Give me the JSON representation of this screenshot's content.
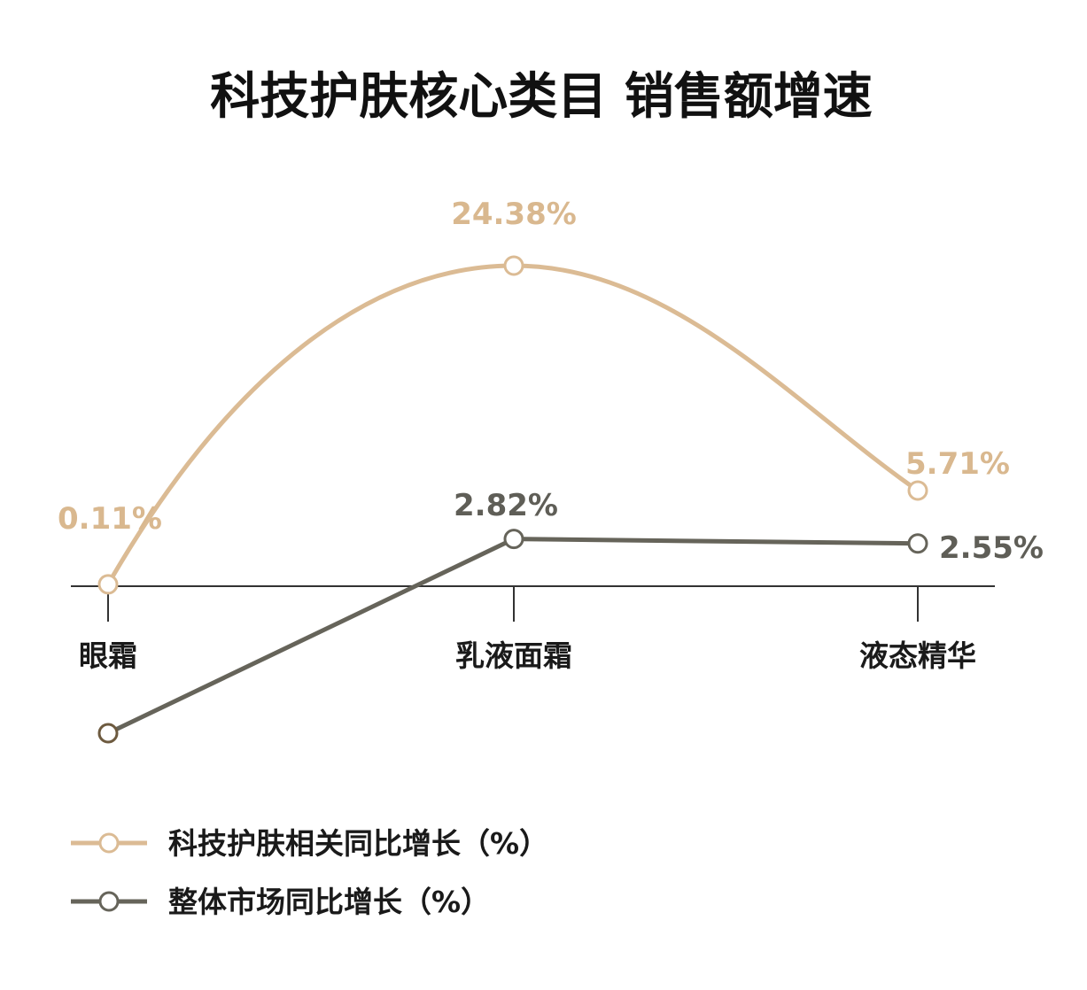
{
  "chart_data": {
    "type": "line",
    "title": "科技护肤核心类目 销售额增速",
    "categories": [
      "眼霜",
      "乳液面霜",
      "液态精华"
    ],
    "series": [
      {
        "name": "科技护肤相关同比增长（%）",
        "values": [
          0.11,
          24.38,
          5.71
        ],
        "labels": [
          "0.11%",
          "24.38%",
          "5.71%"
        ],
        "color": "#dbbb94",
        "label_color": "#d9b88f",
        "smooth": true
      },
      {
        "name": "整体市场同比增长（%）",
        "values": [
          -11.0,
          2.82,
          2.55
        ],
        "labels": [
          "",
          "2.82%",
          "2.55%"
        ],
        "color": "#66645a",
        "label_color": "#5f5e57",
        "smooth": false,
        "first_marker_color": "#6d5a3f"
      }
    ],
    "axis_line_color": "#333333",
    "grid": false,
    "legend_position": "bottom-left"
  }
}
